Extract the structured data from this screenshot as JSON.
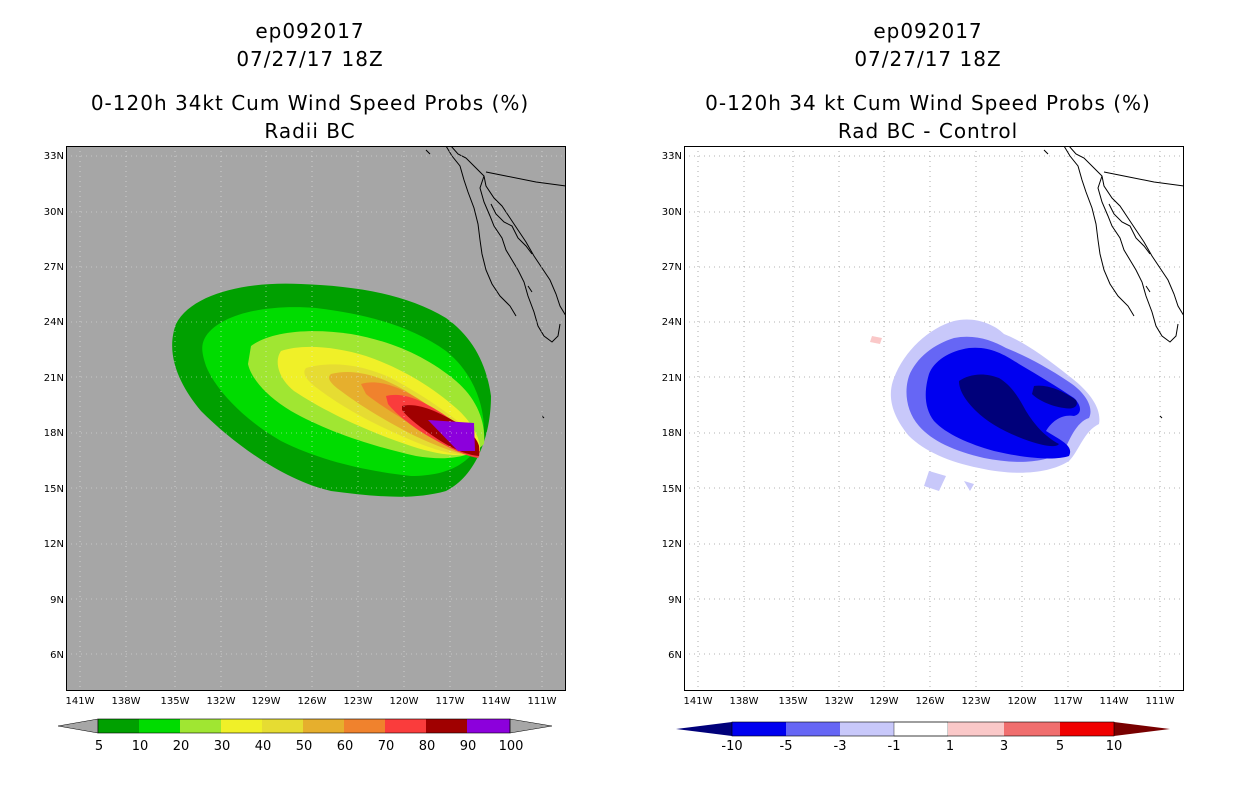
{
  "colors": {
    "land_bg_left": "#a6a6a6",
    "coast": "#000000",
    "grid": "#9a9a9a",
    "prob_scale": [
      "#00a000",
      "#00dc00",
      "#a0e632",
      "#f0f028",
      "#e6dc32",
      "#e6af2d",
      "#f0822d",
      "#fa3c3c",
      "#a00000",
      "#8c00dc"
    ],
    "diff_scale": [
      "#00007a",
      "#0000f0",
      "#6666f5",
      "#c8c8fa",
      "#ffffff",
      "#fac8c8",
      "#f06e6e",
      "#f00000",
      "#780000"
    ]
  },
  "left_panel": {
    "storm": "ep092017",
    "datetime": "07/27/17 18Z",
    "product": "0-120h 34kt Cum Wind Speed Probs (%)",
    "subtitle": "Radii BC",
    "lat_labels": [
      "33N",
      "30N",
      "27N",
      "24N",
      "21N",
      "18N",
      "15N",
      "12N",
      "9N",
      "6N"
    ],
    "lon_labels": [
      "141W",
      "138W",
      "135W",
      "132W",
      "129W",
      "126W",
      "123W",
      "120W",
      "117W",
      "114W",
      "111W"
    ],
    "colorbar_labels": [
      "5",
      "10",
      "20",
      "30",
      "40",
      "50",
      "60",
      "70",
      "80",
      "90",
      "100"
    ]
  },
  "right_panel": {
    "storm": "ep092017",
    "datetime": "07/27/17 18Z",
    "product": "0-120h 34 kt Cum Wind Speed Probs (%)",
    "subtitle": "Rad BC - Control",
    "lat_labels": [
      "33N",
      "30N",
      "27N",
      "24N",
      "21N",
      "18N",
      "15N",
      "12N",
      "9N",
      "6N"
    ],
    "lon_labels": [
      "141W",
      "138W",
      "135W",
      "132W",
      "129W",
      "126W",
      "123W",
      "120W",
      "117W",
      "114W",
      "111W"
    ],
    "colorbar_labels": [
      "-10",
      "-5",
      "-3",
      "-1",
      "1",
      "3",
      "5",
      "10"
    ]
  }
}
